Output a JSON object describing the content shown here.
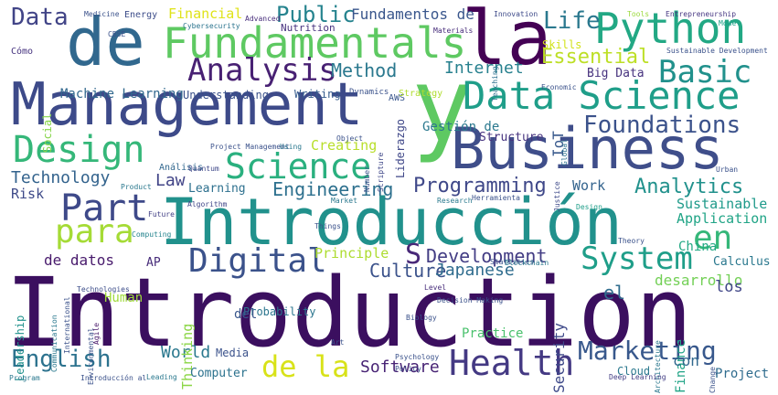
{
  "words": [
    {
      "text": "Introduction",
      "color": "#3b0f5f"
    },
    {
      "text": "Introducción",
      "color": "#21918c"
    },
    {
      "text": "Management",
      "color": "#3d4a89"
    },
    {
      "text": "Business",
      "color": "#3f4e8a"
    },
    {
      "text": "y",
      "color": "#5ec962"
    },
    {
      "text": "la",
      "color": "#440154"
    },
    {
      "text": "de",
      "color": "#31688e"
    },
    {
      "text": "Fundamentals",
      "color": "#5ec962"
    },
    {
      "text": "Data Science",
      "color": "#1f9e89"
    },
    {
      "text": "Python",
      "color": "#22a884"
    },
    {
      "text": "Analysis",
      "color": "#482173"
    },
    {
      "text": "Science",
      "color": "#2ab07f"
    },
    {
      "text": "Design",
      "color": "#35b779"
    },
    {
      "text": "System",
      "color": "#1f9e89"
    },
    {
      "text": "Digital",
      "color": "#3b528b"
    },
    {
      "text": "Health",
      "color": "#443983"
    },
    {
      "text": "Part",
      "color": "#3e4989"
    },
    {
      "text": "para",
      "color": "#a5db36"
    },
    {
      "text": "en",
      "color": "#35b779"
    },
    {
      "text": "Basic",
      "color": "#21918c"
    },
    {
      "text": "Foundations",
      "color": "#3b528b"
    },
    {
      "text": "Marketing",
      "color": "#38588c"
    },
    {
      "text": "English",
      "color": "#2c728e"
    },
    {
      "text": "de la",
      "color": "#d8e219"
    },
    {
      "text": "Data",
      "color": "#414487"
    },
    {
      "text": "Public",
      "color": "#25838e"
    },
    {
      "text": "Method",
      "color": "#2a788e"
    },
    {
      "text": "Development",
      "color": "#433d84"
    },
    {
      "text": "Analytics",
      "color": "#21918c"
    },
    {
      "text": "Programming",
      "color": "#3f4889"
    },
    {
      "text": "Engineering",
      "color": "#2d708e"
    },
    {
      "text": "Culture",
      "color": "#3b528b"
    },
    {
      "text": "Software",
      "color": "#482475"
    },
    {
      "text": "Life",
      "color": "#2a788e"
    },
    {
      "text": "Essential",
      "color": "#bddf26"
    },
    {
      "text": "Internet",
      "color": "#27808e"
    },
    {
      "text": "Technology",
      "color": "#33638d"
    },
    {
      "text": "Law",
      "color": "#414487"
    },
    {
      "text": "S",
      "color": "#482878"
    },
    {
      "text": "World",
      "color": "#2a788e"
    },
    {
      "text": "Fundamentos de",
      "color": "#39568c"
    },
    {
      "text": "Financial",
      "color": "#dfe318"
    },
    {
      "text": "Machine Learning",
      "color": "#31688e"
    },
    {
      "text": "Big Data",
      "color": "#46327e"
    },
    {
      "text": "Gestión de",
      "color": "#2a788e"
    },
    {
      "text": "Structure",
      "color": "#46337f"
    },
    {
      "text": "Creating",
      "color": "#b8de29"
    },
    {
      "text": "Risk",
      "color": "#3e4a89"
    },
    {
      "text": "Learning",
      "color": "#2d708e"
    },
    {
      "text": "Sustainable",
      "color": "#1f9a8a"
    },
    {
      "text": "Application",
      "color": "#20a486"
    },
    {
      "text": "Work",
      "color": "#33638d"
    },
    {
      "text": "de datos",
      "color": "#481a6c"
    },
    {
      "text": "AP",
      "color": "#472c7a"
    },
    {
      "text": "Human",
      "color": "#9fda3a"
    },
    {
      "text": "Principle",
      "color": "#addc30"
    },
    {
      "text": "Japanese",
      "color": "#2f6c8e"
    },
    {
      "text": "China",
      "color": "#22a884"
    },
    {
      "text": "desarrollo",
      "color": "#73d056"
    },
    {
      "text": "Calculus",
      "color": "#2a788e"
    },
    {
      "text": "el",
      "color": "#2f6c8e"
    },
    {
      "text": "los",
      "color": "#404688"
    },
    {
      "text": "Thinking",
      "color": "#8bd646"
    },
    {
      "text": "Computer",
      "color": "#2c728e"
    },
    {
      "text": "Media",
      "color": "#3b528b"
    },
    {
      "text": "Practice",
      "color": "#4ac16d"
    },
    {
      "text": "Project",
      "color": "#2f6c8e"
    },
    {
      "text": "Finance",
      "color": "#20a386"
    },
    {
      "text": "Cloud",
      "color": "#2a788e"
    },
    {
      "text": "Security",
      "color": "#3e4989"
    },
    {
      "text": "con",
      "color": "#31688e"
    },
    {
      "text": "Probability",
      "color": "#2b758e"
    },
    {
      "text": "del",
      "color": "#39568c"
    },
    {
      "text": "Understanding",
      "color": "#3b528b"
    },
    {
      "text": "Writing",
      "color": "#365c8d"
    },
    {
      "text": "Nutrition",
      "color": "#46317e"
    },
    {
      "text": "Energy",
      "color": "#3d4d8a"
    },
    {
      "text": "Medicine",
      "color": "#3b528b"
    },
    {
      "text": "Advanced",
      "color": "#472d7b"
    },
    {
      "text": "Cybersecurity",
      "color": "#2b748e"
    },
    {
      "text": "Cómo",
      "color": "#46337f"
    },
    {
      "text": "Social",
      "color": "#86d549"
    },
    {
      "text": "Leadership",
      "color": "#21918c"
    },
    {
      "text": "Liderazgo",
      "color": "#3f4788"
    },
    {
      "text": "Análisis",
      "color": "#31678e"
    },
    {
      "text": "Skills",
      "color": "#d2e21b"
    },
    {
      "text": "IoT",
      "color": "#38598c"
    },
    {
      "text": "AWS",
      "color": "#39568c"
    },
    {
      "text": "Dynamics",
      "color": "#3b528b"
    },
    {
      "text": "Materials",
      "color": "#472c7a"
    },
    {
      "text": "Innovation",
      "color": "#3e4a89"
    },
    {
      "text": "Tools",
      "color": "#9bd93c"
    },
    {
      "text": "Entrepreneurship",
      "color": "#453581"
    },
    {
      "text": "Sustainable Development",
      "color": "#3b528b"
    },
    {
      "text": "Model",
      "color": "#1fa188"
    },
    {
      "text": "Global",
      "color": "#2c718e"
    },
    {
      "text": "Economic",
      "color": "#3b528b"
    },
    {
      "text": "Teaching",
      "color": "#2e6f8e"
    },
    {
      "text": "Strategy",
      "color": "#b0dd2f"
    },
    {
      "text": "Scripture",
      "color": "#3f4788"
    },
    {
      "text": "Object",
      "color": "#3b528b"
    },
    {
      "text": "Justice",
      "color": "#3e4a89"
    },
    {
      "text": "Quantum",
      "color": "#3f4889"
    },
    {
      "text": "Algorithm",
      "color": "#404688"
    },
    {
      "text": "Product",
      "color": "#2a788e"
    },
    {
      "text": "Future",
      "color": "#424086"
    },
    {
      "text": "Computing",
      "color": "#25848e"
    },
    {
      "text": "Agile",
      "color": "#48186a"
    },
    {
      "text": "Technologies",
      "color": "#3d4e8a"
    },
    {
      "text": "Things",
      "color": "#3b528b"
    },
    {
      "text": "Research",
      "color": "#29798e"
    },
    {
      "text": "Herramienta",
      "color": "#3b528b"
    },
    {
      "text": "Market",
      "color": "#2a788e"
    },
    {
      "text": "Urban",
      "color": "#3b528b"
    },
    {
      "text": "Design",
      "color": "#1f9e89"
    },
    {
      "text": "Statistics",
      "color": "#3b528b"
    },
    {
      "text": "Decision Making",
      "color": "#3b528b"
    },
    {
      "text": "Biology",
      "color": "#3b528b"
    },
    {
      "text": "Level",
      "color": "#472d7b"
    },
    {
      "text": "Blockchain",
      "color": "#2a788e"
    },
    {
      "text": "Psychology",
      "color": "#3b528b"
    },
    {
      "text": "Policy",
      "color": "#3b528b"
    },
    {
      "text": "Art",
      "color": "#3b528b"
    },
    {
      "text": "Architecture",
      "color": "#2a788e"
    },
    {
      "text": "Change",
      "color": "#3b528b"
    },
    {
      "text": "Theory",
      "color": "#3b528b"
    },
    {
      "text": "Deep Learning",
      "color": "#433e85"
    },
    {
      "text": "Leading",
      "color": "#2a788e"
    },
    {
      "text": "Introducción al",
      "color": "#3b528b"
    },
    {
      "text": "Program",
      "color": "#2a788e"
    },
    {
      "text": "International",
      "color": "#3b528b"
    },
    {
      "text": "Communication",
      "color": "#2a788e"
    },
    {
      "text": "Environmental",
      "color": "#3b528b"
    },
    {
      "text": "Project Management",
      "color": "#3b528b"
    },
    {
      "text": "Using",
      "color": "#2a788e"
    },
    {
      "text": "Number",
      "color": "#3b528b"
    },
    {
      "text": "CBSE",
      "color": "#3b528b"
    }
  ]
}
